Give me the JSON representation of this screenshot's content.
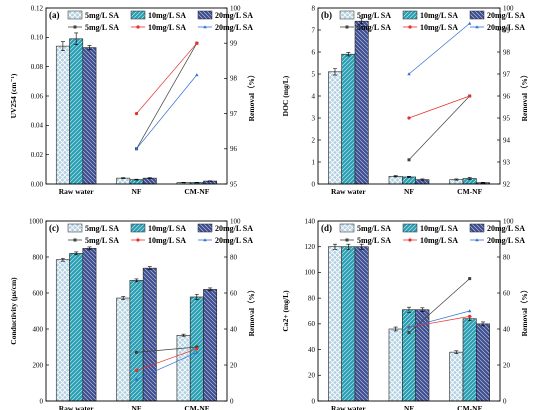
{
  "colors": {
    "bar_fills": [
      "#b3d1e3",
      "#2a9fb4",
      "#3e4f91"
    ],
    "line_colors": [
      "#404040",
      "#e8302a",
      "#2f6fd6"
    ]
  },
  "legend": {
    "bars": [
      "5mg/L SA",
      "10mg/L SA",
      "20mg/L SA"
    ],
    "lines": [
      "5mg/L SA",
      "10mg/L SA",
      "20mg/L SA"
    ]
  },
  "chart_data": [
    {
      "type": "bar",
      "label": "(a)",
      "categories": [
        "Raw water",
        "NF",
        "CM-NF"
      ],
      "ylabel": "UV254 (cm⁻¹)",
      "ylabel_right": "Removal（%）",
      "ylim": [
        0.0,
        0.12
      ],
      "yticks": [
        "0.00",
        "0.02",
        "0.04",
        "0.06",
        "0.08",
        "0.10",
        "0.12"
      ],
      "y2lim": [
        95,
        100
      ],
      "y2ticks": [
        "95",
        "96",
        "97",
        "98",
        "99",
        "100"
      ],
      "series": [
        {
          "name": "5mg/L SA",
          "values": [
            0.094,
            0.004,
            0.001
          ],
          "errors": [
            0.003,
            0.0003,
            0.0002
          ]
        },
        {
          "name": "10mg/L SA",
          "values": [
            0.099,
            0.003,
            0.001
          ],
          "errors": [
            0.004,
            0.0003,
            0.0002
          ]
        },
        {
          "name": "20mg/L SA",
          "values": [
            0.093,
            0.004,
            0.002
          ],
          "errors": [
            0.0015,
            0.0003,
            0.0002
          ]
        }
      ],
      "removal": [
        {
          "name": "5mg/L SA",
          "values": [
            96.0,
            99.0
          ]
        },
        {
          "name": "10mg/L SA",
          "values": [
            97.0,
            99.0
          ]
        },
        {
          "name": "20mg/L SA",
          "values": [
            96.0,
            98.1
          ]
        }
      ]
    },
    {
      "type": "bar",
      "label": "(b)",
      "categories": [
        "Raw water",
        "NF",
        "CM-NF"
      ],
      "ylabel": "DOC (mg/L)",
      "ylabel_right": "Removal（%）",
      "ylim": [
        0,
        8
      ],
      "yticks": [
        "0",
        "1",
        "2",
        "3",
        "4",
        "5",
        "6",
        "7",
        "8"
      ],
      "y2lim": [
        92,
        100
      ],
      "y2ticks": [
        "92",
        "93",
        "94",
        "95",
        "96",
        "97",
        "98",
        "99",
        "100"
      ],
      "series": [
        {
          "name": "5mg/L SA",
          "values": [
            5.1,
            0.35,
            0.2
          ],
          "errors": [
            0.15,
            0.03,
            0.03
          ]
        },
        {
          "name": "10mg/L SA",
          "values": [
            5.9,
            0.32,
            0.25
          ],
          "errors": [
            0.08,
            0.03,
            0.05
          ]
        },
        {
          "name": "20mg/L SA",
          "values": [
            7.4,
            0.2,
            0.06
          ],
          "errors": [
            0.12,
            0.03,
            0.02
          ]
        }
      ],
      "removal": [
        {
          "name": "5mg/L SA",
          "values": [
            93.1,
            96.0
          ]
        },
        {
          "name": "10mg/L SA",
          "values": [
            95.0,
            96.0
          ]
        },
        {
          "name": "20mg/L SA",
          "values": [
            97.0,
            99.3
          ]
        }
      ]
    },
    {
      "type": "bar",
      "label": "(c)",
      "categories": [
        "Raw water",
        "NF",
        "CM-NF"
      ],
      "ylabel": "Conductivity (μs/cm)",
      "ylabel_right": "Removal（%）",
      "ylim": [
        0,
        1000
      ],
      "yticks": [
        "0",
        "200",
        "400",
        "600",
        "800",
        "1000"
      ],
      "y2lim": [
        0,
        100
      ],
      "y2ticks": [
        "0",
        "20",
        "40",
        "60",
        "80",
        "100"
      ],
      "series": [
        {
          "name": "5mg/L SA",
          "values": [
            785,
            572,
            365
          ],
          "errors": [
            8,
            8,
            6
          ]
        },
        {
          "name": "10mg/L SA",
          "values": [
            820,
            670,
            578
          ],
          "errors": [
            8,
            8,
            15
          ]
        },
        {
          "name": "20mg/L SA",
          "values": [
            848,
            738,
            620
          ],
          "errors": [
            8,
            8,
            8
          ]
        }
      ],
      "removal": [
        {
          "name": "5mg/L SA",
          "values": [
            27,
            30
          ]
        },
        {
          "name": "10mg/L SA",
          "values": [
            17,
            29
          ]
        },
        {
          "name": "20mg/L SA",
          "values": [
            12,
            27
          ]
        }
      ]
    },
    {
      "type": "bar",
      "label": "(d)",
      "categories": [
        "Raw water",
        "NF",
        "CM-NF"
      ],
      "ylabel": "Ca2+ (mg/L)",
      "ylabel_right": "Removal（%）",
      "ylim": [
        0,
        140
      ],
      "yticks": [
        "0",
        "20",
        "40",
        "60",
        "80",
        "100",
        "120",
        "140"
      ],
      "y2lim": [
        0,
        100
      ],
      "y2ticks": [
        "0",
        "20",
        "40",
        "60",
        "80",
        "100"
      ],
      "series": [
        {
          "name": "5mg/L SA",
          "values": [
            120,
            56,
            38
          ],
          "errors": [
            2,
            1.5,
            1
          ]
        },
        {
          "name": "10mg/L SA",
          "values": [
            120,
            71,
            64
          ],
          "errors": [
            2,
            2,
            1.5
          ]
        },
        {
          "name": "20mg/L SA",
          "values": [
            120,
            71,
            60
          ],
          "errors": [
            2,
            1.5,
            1.5
          ]
        }
      ],
      "removal": [
        {
          "name": "5mg/L SA",
          "values": [
            38,
            68
          ]
        },
        {
          "name": "10mg/L SA",
          "values": [
            41,
            47
          ]
        },
        {
          "name": "20mg/L SA",
          "values": [
            41,
            50
          ]
        }
      ]
    }
  ]
}
